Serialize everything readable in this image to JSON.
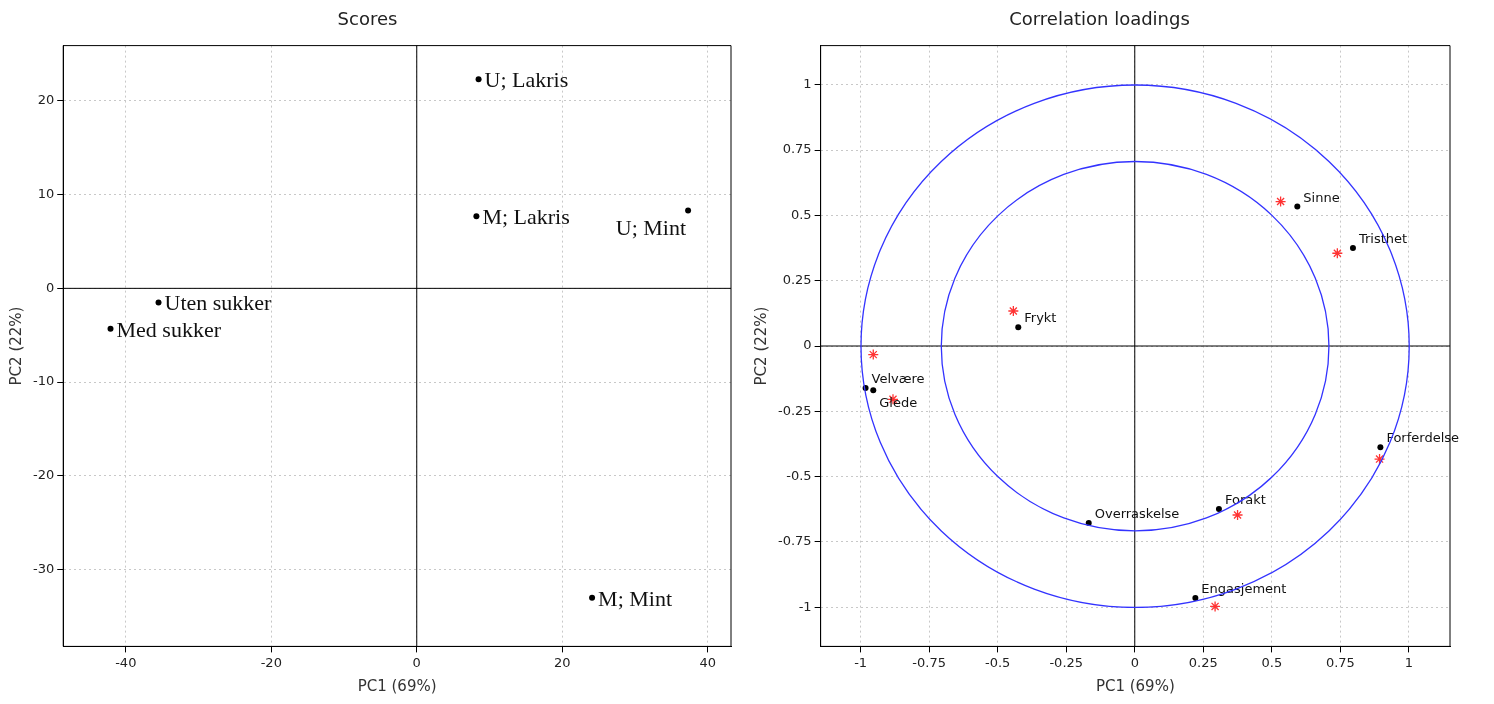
{
  "chart_data": [
    {
      "type": "scatter",
      "title": "Scores",
      "xlabel": "PC1 (69%)",
      "ylabel": "PC2 (22%)",
      "xlim": [
        -48.6,
        43.2
      ],
      "ylim": [
        -38.2,
        25.9
      ],
      "xticks": [
        -40,
        -20,
        0,
        20,
        40
      ],
      "yticks": [
        -30,
        -20,
        -10,
        0,
        10,
        20
      ],
      "grid": true,
      "legend": false,
      "marker": "circle",
      "series": [
        {
          "color": "#000000",
          "x": [
            8.5,
            8.2,
            37.3,
            -35.5,
            -42.1,
            24.1
          ],
          "values": [
            22.3,
            7.7,
            8.3,
            -1.5,
            -4.3,
            -33.0
          ]
        }
      ],
      "annotations": [
        {
          "text": "U; Lakris",
          "x": 8.5,
          "y": 22.3
        },
        {
          "text": "M; Lakris",
          "x": 8.2,
          "y": 7.7
        },
        {
          "text": "U; Mint",
          "x": 37.3,
          "y": 8.3
        },
        {
          "text": "Uten sukker",
          "x": -35.5,
          "y": -1.5
        },
        {
          "text": "Med sukker",
          "x": -42.1,
          "y": -4.3
        },
        {
          "text": "M; Mint",
          "x": 24.1,
          "y": -33.0
        }
      ]
    },
    {
      "type": "scatter",
      "title": "Correlation loadings",
      "xlabel": "PC1 (69%)",
      "ylabel": "PC2 (22%)",
      "xlim": [
        -1.146,
        1.15
      ],
      "ylim": [
        -1.15,
        1.15
      ],
      "xticks": [
        -1,
        -0.75,
        -0.5,
        -0.25,
        0,
        0.25,
        0.5,
        0.75,
        1
      ],
      "yticks": [
        -1,
        -0.75,
        -0.5,
        -0.25,
        0,
        0.25,
        0.5,
        0.75,
        1
      ],
      "grid": true,
      "legend": false,
      "series": [
        {
          "color": "#000000",
          "marker": "circle",
          "x": [
            0.593,
            0.796,
            -0.425,
            -0.982,
            -0.954,
            0.896,
            0.307,
            -0.168,
            0.221
          ],
          "values": [
            0.534,
            0.375,
            0.072,
            -0.161,
            -0.169,
            -0.388,
            -0.624,
            -0.678,
            -0.965
          ]
        },
        {
          "color": "#ff3333",
          "marker": "cross",
          "x": [
            0.532,
            0.739,
            -0.443,
            -0.954,
            -0.882,
            0.893,
            0.375,
            0.293
          ],
          "values": [
            0.553,
            0.355,
            0.134,
            -0.033,
            -0.204,
            -0.433,
            -0.647,
            -0.997
          ]
        }
      ],
      "annotations": [
        {
          "text": "Sinne",
          "x": 0.593,
          "y": 0.534
        },
        {
          "text": "Tristhet",
          "x": 0.796,
          "y": 0.375
        },
        {
          "text": "Frykt",
          "x": -0.425,
          "y": 0.072
        },
        {
          "text": "Velvære",
          "x": -0.982,
          "y": -0.161
        },
        {
          "text": "Glede",
          "x": -0.954,
          "y": -0.169
        },
        {
          "text": "Forferdelse",
          "x": 0.896,
          "y": -0.388
        },
        {
          "text": "Forakt",
          "x": 0.307,
          "y": -0.624
        },
        {
          "text": "Overraskelse",
          "x": -0.168,
          "y": -0.678
        },
        {
          "text": "Engasjement",
          "x": 0.221,
          "y": -0.965
        }
      ]
    }
  ]
}
